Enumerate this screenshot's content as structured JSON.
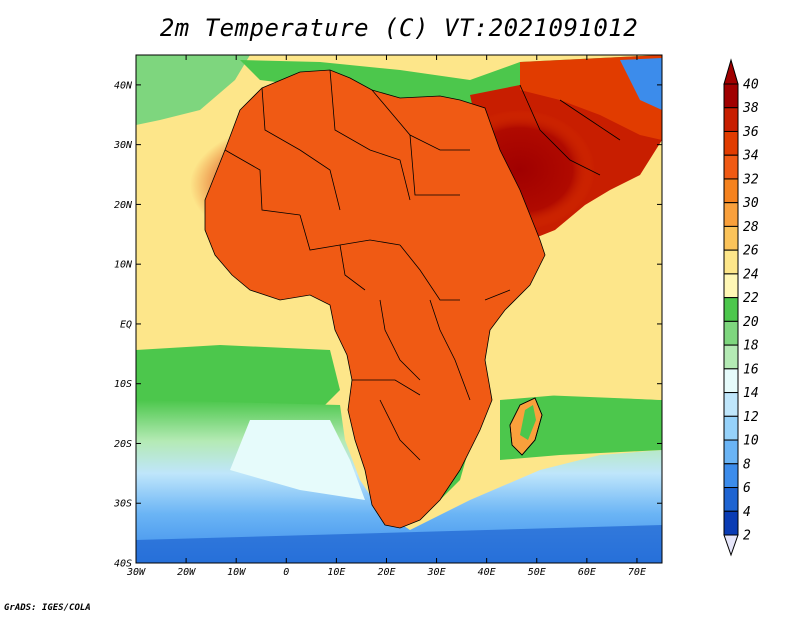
{
  "title": "2m Temperature (C) VT:2021091012",
  "credit": "GrADS: IGES/COLA",
  "map": {
    "variable": "2m Temperature",
    "units": "C",
    "valid_time": "2021091012",
    "lon_range": [
      -30,
      75
    ],
    "lat_range": [
      -40,
      45
    ],
    "lon_ticks": [
      {
        "value": -30,
        "label": "30W"
      },
      {
        "value": -20,
        "label": "20W"
      },
      {
        "value": -10,
        "label": "10W"
      },
      {
        "value": 0,
        "label": "0"
      },
      {
        "value": 10,
        "label": "10E"
      },
      {
        "value": 20,
        "label": "20E"
      },
      {
        "value": 30,
        "label": "30E"
      },
      {
        "value": 40,
        "label": "40E"
      },
      {
        "value": 50,
        "label": "50E"
      },
      {
        "value": 60,
        "label": "60E"
      },
      {
        "value": 70,
        "label": "70E"
      }
    ],
    "lat_ticks": [
      {
        "value": 40,
        "label": "40N"
      },
      {
        "value": 30,
        "label": "30N"
      },
      {
        "value": 20,
        "label": "20N"
      },
      {
        "value": 10,
        "label": "10N"
      },
      {
        "value": 0,
        "label": "EQ"
      },
      {
        "value": -10,
        "label": "10S"
      },
      {
        "value": -20,
        "label": "20S"
      },
      {
        "value": -30,
        "label": "30S"
      },
      {
        "value": -40,
        "label": "40S"
      }
    ]
  },
  "colorbar": {
    "levels": [
      40,
      38,
      36,
      34,
      32,
      30,
      28,
      26,
      24,
      22,
      20,
      18,
      16,
      14,
      12,
      10,
      8,
      6,
      4,
      2
    ],
    "colors": [
      "#a00000",
      "#c81e00",
      "#e13c00",
      "#f05a14",
      "#f5821e",
      "#f9a03c",
      "#fbc35a",
      "#fde68a",
      "#fff7b5",
      "#4cc74c",
      "#7ed67e",
      "#b4eab4",
      "#e6fbfb",
      "#bfe6fb",
      "#96d2fa",
      "#6ab4f5",
      "#3c8ceb",
      "#1e64d2",
      "#0a3cb4",
      "#00147a"
    ],
    "top_color": "#a00000",
    "bottom_color": "#e6e6fa"
  }
}
